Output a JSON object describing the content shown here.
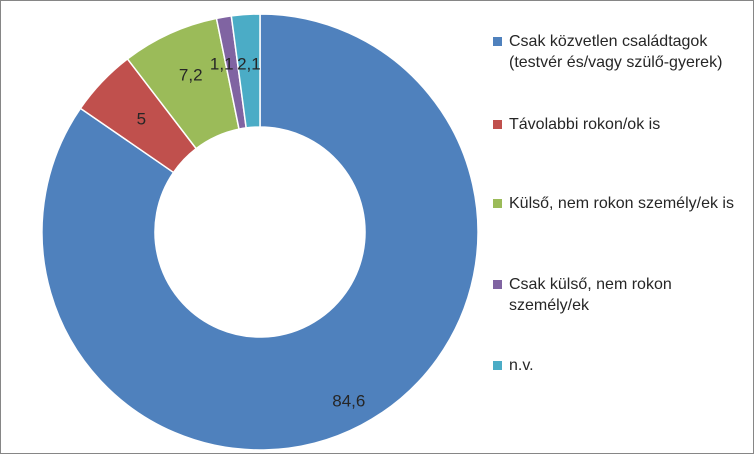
{
  "chart_data": {
    "type": "pie",
    "variant": "donut",
    "title": "",
    "categories": [
      "Csak közvetlen családtagok (testvér és/vagy szülő-gyerek)",
      "Távolabbi rokon/ok is",
      "Külső, nem rokon személy/ek is",
      "Csak külső, nem rokon személy/ek",
      "n.v."
    ],
    "values": [
      84.6,
      5,
      7.2,
      1.1,
      2.1
    ],
    "value_labels": [
      "84,6",
      "5",
      "7,2",
      "1,1",
      "2,1"
    ],
    "colors": [
      "#4F81BD",
      "#C0504D",
      "#9BBB59",
      "#8064A2",
      "#4BACC6"
    ],
    "start_angle_deg": 0,
    "direction": "clockwise",
    "legend_position": "right"
  }
}
